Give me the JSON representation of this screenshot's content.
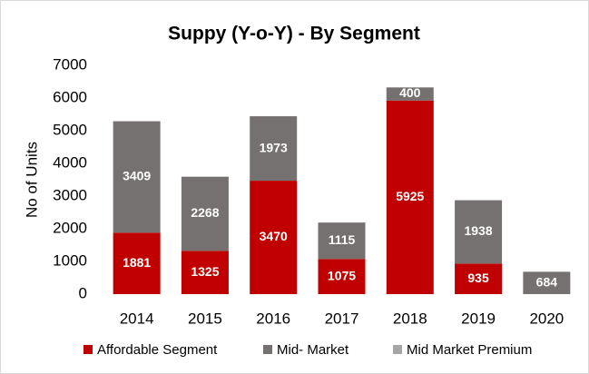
{
  "chart_data": {
    "type": "stacked_bar",
    "title": "Suppy (Y-o-Y) - By Segment",
    "y_axis_label": "No of Units",
    "categories": [
      "2014",
      "2015",
      "2016",
      "2017",
      "2018",
      "2019",
      "2020"
    ],
    "series": [
      {
        "name": "Affordable Segment",
        "color": "#c00000",
        "values": [
          1881,
          1325,
          3470,
          1075,
          5925,
          935,
          null
        ]
      },
      {
        "name": "Mid- Market",
        "color": "#767171",
        "values": [
          3409,
          2268,
          1973,
          1115,
          400,
          1938,
          684
        ]
      },
      {
        "name": "Mid Market Premium",
        "color": "#a6a6a6",
        "values": [
          null,
          null,
          null,
          null,
          null,
          null,
          null
        ]
      }
    ],
    "ylim": [
      0,
      7000
    ],
    "yticks": [
      0,
      1000,
      2000,
      3000,
      4000,
      5000,
      6000,
      7000
    ],
    "grid": false,
    "legend": "bottom"
  }
}
